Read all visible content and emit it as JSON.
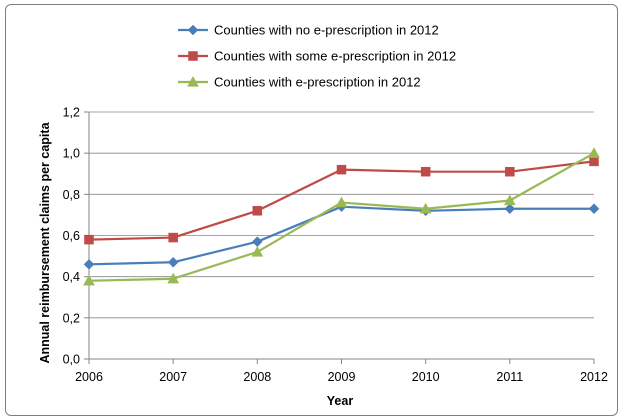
{
  "chart_data": {
    "type": "line",
    "title": "",
    "xlabel": "Year",
    "ylabel": "Annual reimbursement claims per capita",
    "x": [
      "2006",
      "2007",
      "2008",
      "2009",
      "2010",
      "2011",
      "2012"
    ],
    "ylim": [
      0,
      1.2
    ],
    "yticks": [
      "0,0",
      "0,2",
      "0,4",
      "0,6",
      "0,8",
      "1,0",
      "1,2"
    ],
    "grid": "horizontal",
    "legend_position": "top",
    "series": [
      {
        "name": "Counties with no e-prescription in 2012",
        "color": "#4a7ebb",
        "marker": "diamond",
        "values": [
          0.46,
          0.47,
          0.57,
          0.74,
          0.72,
          0.73,
          0.73
        ]
      },
      {
        "name": "Counties with some e-prescription in 2012",
        "color": "#be4b48",
        "marker": "square",
        "values": [
          0.58,
          0.59,
          0.72,
          0.92,
          0.91,
          0.91,
          0.96
        ]
      },
      {
        "name": "Counties with e-prescription in 2012",
        "color": "#98b954",
        "marker": "triangle",
        "values": [
          0.38,
          0.39,
          0.52,
          0.76,
          0.73,
          0.77,
          1.0
        ]
      }
    ]
  }
}
